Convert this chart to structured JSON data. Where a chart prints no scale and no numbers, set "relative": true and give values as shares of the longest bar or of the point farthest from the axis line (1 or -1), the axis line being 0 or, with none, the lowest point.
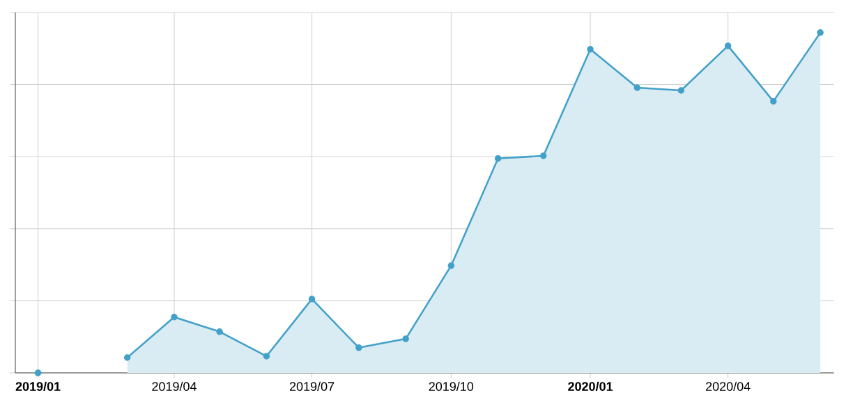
{
  "chart_data": {
    "type": "area",
    "relative": true,
    "grid": true,
    "marker": "circle",
    "line_style": "solid",
    "x": [
      "2019-03",
      "2019-04",
      "2019-05",
      "2019-06",
      "2019-07",
      "2019-08",
      "2019-09",
      "2019-10",
      "2019-11",
      "2019-12",
      "2020-01",
      "2020-02",
      "2020-03",
      "2020-04",
      "2020-05",
      "2020-06"
    ],
    "series": [
      {
        "type": "scatter",
        "x": [
          "2019-01"
        ],
        "color": "#42a0c9",
        "values": [
          0
        ]
      },
      {
        "color": "#42a0c9",
        "values": [
          0.045,
          0.164,
          0.121,
          0.049,
          0.217,
          0.074,
          0.1,
          0.315,
          0.63,
          0.638,
          0.951,
          0.838,
          0.83,
          0.961,
          0.798,
          1
        ]
      }
    ],
    "xlim": [
      "2018-12-17",
      "2020-06-10"
    ],
    "xticks": [
      {
        "value": "2019-01",
        "label": "2019/01"
      },
      {
        "value": "2019-04",
        "label": "2019/04"
      },
      {
        "value": "2019-07",
        "label": "2019/07"
      },
      {
        "value": "2019-10",
        "label": "2019/10"
      },
      {
        "value": "2020-01",
        "label": "2020/01"
      },
      {
        "value": "2020-04",
        "label": "2020/04"
      }
    ]
  }
}
